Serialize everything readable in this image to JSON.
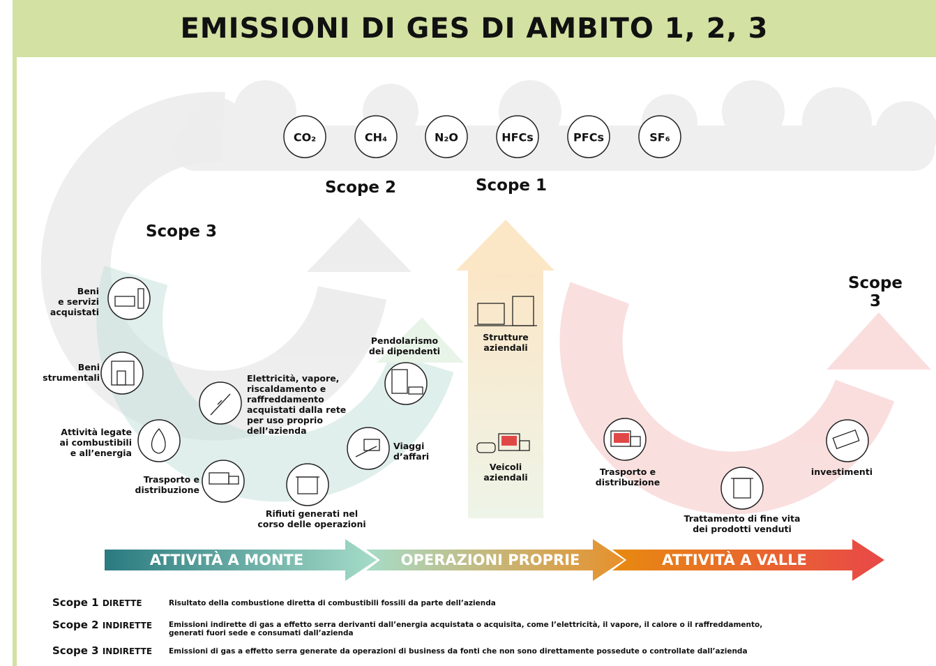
{
  "title": "EMISSIONI DI GES DI AMBITO 1, 2, 3",
  "gases": [
    "CO₂",
    "CH₄",
    "N₂O",
    "HFCs",
    "PFCs",
    "SF₆"
  ],
  "scope_labels": {
    "scope2": "Scope 2",
    "scope1": "Scope 1",
    "scope3_upstream": "Scope 3",
    "scope3_downstream": "Scope 3"
  },
  "upstream": [
    "Beni\ne servizi\nacquistati",
    "Beni\nstrumentali",
    "Attività legate\nai combustibili\ne all’energia",
    "Trasporto e\ndistribuzione",
    "Rifiuti generati nel\ncorso delle operazioni",
    "Elettricità, vapore,\nriscaldamento e\nraffreddamento\nacquistati dalla rete\nper uso proprio\ndell’azienda",
    "Viaggi\nd’affari",
    "Pendolarismo\ndei dipendenti"
  ],
  "own_operations": [
    "Strutture\naziendali",
    "Veicoli\naziendali"
  ],
  "downstream": [
    "Trasporto e\ndistribuzione",
    "Trattamento di fine vita\ndei prodotti venduti",
    "investimenti"
  ],
  "banner": [
    "ATTIVITÀ A MONTE",
    "OPERAZIONI PROPRIE",
    "ATTIVITÀ A VALLE"
  ],
  "legend": [
    {
      "scope": "Scope 1",
      "type": "DIRETTE",
      "description": "Risultato della combustione diretta di combustibili fossili da parte dell’azienda"
    },
    {
      "scope": "Scope 2",
      "type": "INDIRETTE",
      "description": "Emissioni indirette di gas a effetto serra derivanti dall’energia acquistata o acquisita, come l’elettricità, il vapore, il calore o il raffreddamento,\ngenerati fuori sede e consumati dall’azienda"
    },
    {
      "scope": "Scope 3",
      "type": "INDIRETTE",
      "description": "Emissioni di gas a effetto serra generate da operazioni di business da fonti che non sono direttamente possedute o controllate dall’azienda"
    }
  ]
}
